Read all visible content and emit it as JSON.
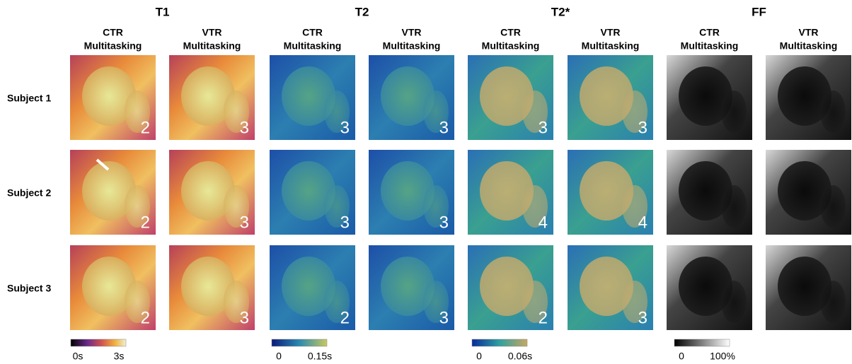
{
  "groups": [
    {
      "title": "T1",
      "columns": [
        [
          "CTR",
          "Multitasking"
        ],
        [
          "VTR",
          "Multitasking"
        ]
      ],
      "colorbar": {
        "min": "0s",
        "max": "3s"
      }
    },
    {
      "title": "T2",
      "columns": [
        [
          "CTR",
          "Multitasking"
        ],
        [
          "VTR",
          "Multitasking"
        ]
      ],
      "colorbar": {
        "min": "0",
        "max": "0.15s"
      }
    },
    {
      "title": "T2*",
      "columns": [
        [
          "CTR",
          "Multitasking"
        ],
        [
          "VTR",
          "Multitasking"
        ]
      ],
      "colorbar": {
        "min": "0",
        "max": "0.06s"
      }
    },
    {
      "title": "FF",
      "columns": [
        [
          "CTR",
          "Multitasking"
        ],
        [
          "VTR",
          "Multitasking"
        ]
      ],
      "colorbar": {
        "min": "0",
        "max": "100%"
      }
    }
  ],
  "rows": [
    {
      "label": "Subject 1",
      "scores": [
        "2",
        "3",
        "3",
        "3",
        "3",
        "3"
      ]
    },
    {
      "label": "Subject 2",
      "scores": [
        "2",
        "3",
        "3",
        "3",
        "4",
        "4"
      ]
    },
    {
      "label": "Subject 3",
      "scores": [
        "2",
        "3",
        "2",
        "3",
        "2",
        "3"
      ]
    }
  ]
}
